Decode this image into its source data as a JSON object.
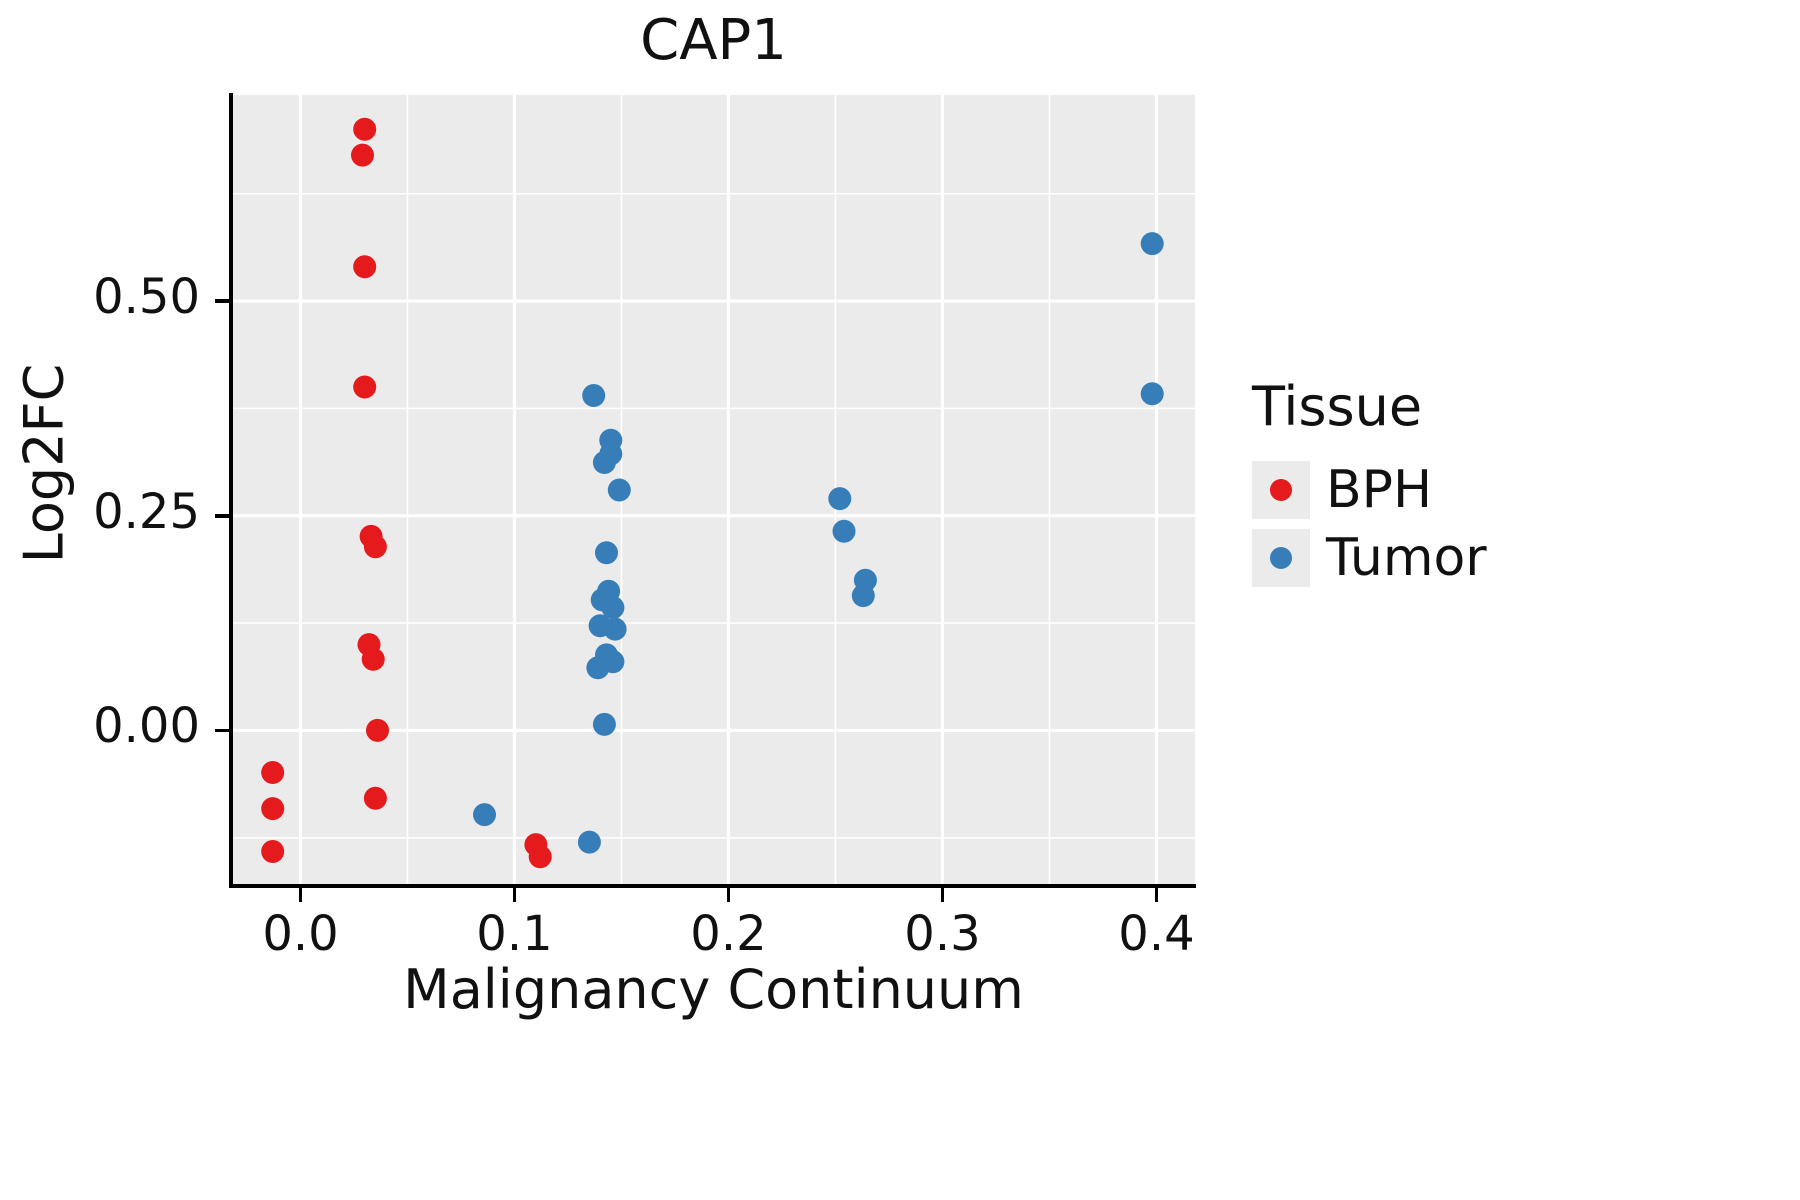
{
  "chart_data": {
    "type": "scatter",
    "title": "CAP1",
    "xlabel": "Malignancy Continuum",
    "ylabel": "Log2FC",
    "legend_title": "Tissue",
    "xlim": [
      -0.032,
      0.418
    ],
    "ylim": [
      -0.18,
      0.74
    ],
    "xticks": [
      0.0,
      0.1,
      0.2,
      0.3,
      0.4
    ],
    "xtick_labels": [
      "0.0",
      "0.1",
      "0.2",
      "0.3",
      "0.4"
    ],
    "yticks": [
      0.0,
      0.25,
      0.5
    ],
    "ytick_labels": [
      "0.00",
      "0.25",
      "0.50"
    ],
    "x_minor": [
      0.05,
      0.15,
      0.25,
      0.35
    ],
    "y_minor": [
      -0.125,
      0.125,
      0.375,
      0.625
    ],
    "grid": true,
    "panel_background": "#EBEBEB",
    "grid_color": "#FFFFFF",
    "legend_position": "right",
    "series": [
      {
        "name": "BPH",
        "color": "#E41A1C",
        "points": [
          [
            0.03,
            0.7
          ],
          [
            0.029,
            0.67
          ],
          [
            0.03,
            0.54
          ],
          [
            0.03,
            0.4
          ],
          [
            0.033,
            0.226
          ],
          [
            0.035,
            0.214
          ],
          [
            0.032,
            0.1
          ],
          [
            0.034,
            0.083
          ],
          [
            0.036,
            0.0
          ],
          [
            0.035,
            -0.079
          ],
          [
            -0.013,
            -0.049
          ],
          [
            -0.013,
            -0.091
          ],
          [
            -0.013,
            -0.141
          ],
          [
            0.11,
            -0.133
          ],
          [
            0.112,
            -0.147
          ]
        ]
      },
      {
        "name": "Tumor",
        "color": "#377EB8",
        "points": [
          [
            0.137,
            0.39
          ],
          [
            0.145,
            0.338
          ],
          [
            0.145,
            0.322
          ],
          [
            0.142,
            0.312
          ],
          [
            0.149,
            0.28
          ],
          [
            0.143,
            0.207
          ],
          [
            0.144,
            0.162
          ],
          [
            0.141,
            0.152
          ],
          [
            0.146,
            0.143
          ],
          [
            0.14,
            0.122
          ],
          [
            0.147,
            0.118
          ],
          [
            0.143,
            0.088
          ],
          [
            0.146,
            0.08
          ],
          [
            0.139,
            0.073
          ],
          [
            0.142,
            0.007
          ],
          [
            0.252,
            0.27
          ],
          [
            0.254,
            0.232
          ],
          [
            0.264,
            0.175
          ],
          [
            0.263,
            0.157
          ],
          [
            0.398,
            0.567
          ],
          [
            0.398,
            0.392
          ],
          [
            0.086,
            -0.098
          ],
          [
            0.135,
            -0.13
          ]
        ]
      }
    ]
  }
}
